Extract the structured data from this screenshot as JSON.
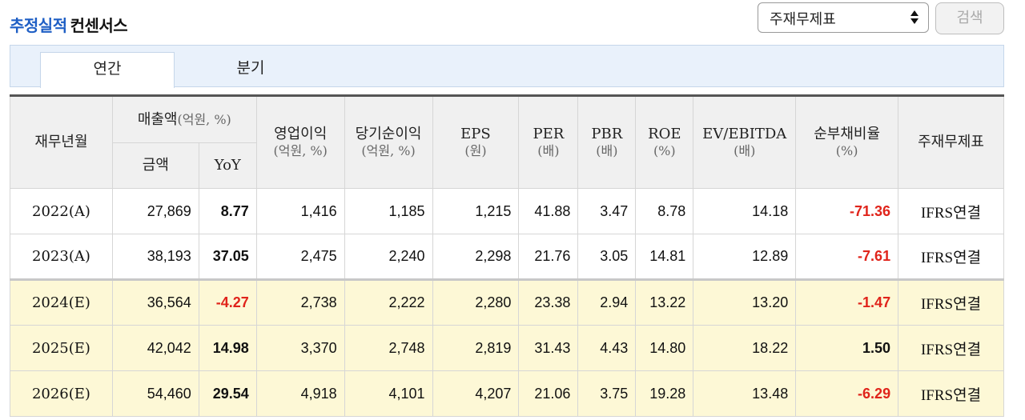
{
  "header": {
    "title_accent": "추정실적",
    "title_rest": "컨센서스",
    "select_value": "주재무제표",
    "search_label": "검색"
  },
  "tabs": [
    {
      "label": "연간",
      "active": true
    },
    {
      "label": "분기",
      "active": false
    }
  ],
  "table": {
    "headers": {
      "period": "재무년월",
      "revenue": "매출액",
      "revenue_unit": "(억원, %)",
      "revenue_amount": "금액",
      "revenue_yoy": "YoY",
      "op_income": "영업이익",
      "op_income_unit": "(억원, %)",
      "net_income": "당기순이익",
      "net_income_unit": "(억원, %)",
      "eps": "EPS",
      "eps_unit": "(원)",
      "per": "PER",
      "per_unit": "(배)",
      "pbr": "PBR",
      "pbr_unit": "(배)",
      "roe": "ROE",
      "roe_unit": "(%)",
      "ev_ebitda": "EV/EBITDA",
      "ev_ebitda_unit": "(배)",
      "net_debt_ratio": "순부채비율",
      "net_debt_ratio_unit": "(%)",
      "statement": "주재무제표"
    },
    "rows": [
      {
        "period": "2022(A)",
        "revenue": "27,869",
        "yoy": "8.77",
        "op_income": "1,416",
        "net_income": "1,185",
        "eps": "1,215",
        "per": "41.88",
        "pbr": "3.47",
        "roe": "8.78",
        "ev_ebitda": "14.18",
        "net_debt_ratio": "-71.36",
        "statement": "IFRS연결"
      },
      {
        "period": "2023(A)",
        "revenue": "38,193",
        "yoy": "37.05",
        "op_income": "2,475",
        "net_income": "2,240",
        "eps": "2,298",
        "per": "21.76",
        "pbr": "3.05",
        "roe": "14.81",
        "ev_ebitda": "12.89",
        "net_debt_ratio": "-7.61",
        "statement": "IFRS연결"
      },
      {
        "period": "2024(E)",
        "revenue": "36,564",
        "yoy": "-4.27",
        "op_income": "2,738",
        "net_income": "2,222",
        "eps": "2,280",
        "per": "23.38",
        "pbr": "2.94",
        "roe": "13.22",
        "ev_ebitda": "13.20",
        "net_debt_ratio": "-1.47",
        "statement": "IFRS연결"
      },
      {
        "period": "2025(E)",
        "revenue": "42,042",
        "yoy": "14.98",
        "op_income": "3,370",
        "net_income": "2,748",
        "eps": "2,819",
        "per": "31.43",
        "pbr": "4.43",
        "roe": "14.80",
        "ev_ebitda": "18.22",
        "net_debt_ratio": "1.50",
        "statement": "IFRS연결"
      },
      {
        "period": "2026(E)",
        "revenue": "54,460",
        "yoy": "29.54",
        "op_income": "4,918",
        "net_income": "4,101",
        "eps": "4,207",
        "per": "21.06",
        "pbr": "3.75",
        "roe": "19.28",
        "ev_ebitda": "13.48",
        "net_debt_ratio": "-6.29",
        "statement": "IFRS연결"
      }
    ]
  },
  "colors": {
    "accent": "#1f5fc5",
    "negative": "#e0241b",
    "estimate_row_bg": "#fdf8d6",
    "tab_strip_bg": "#e9f1fb"
  }
}
